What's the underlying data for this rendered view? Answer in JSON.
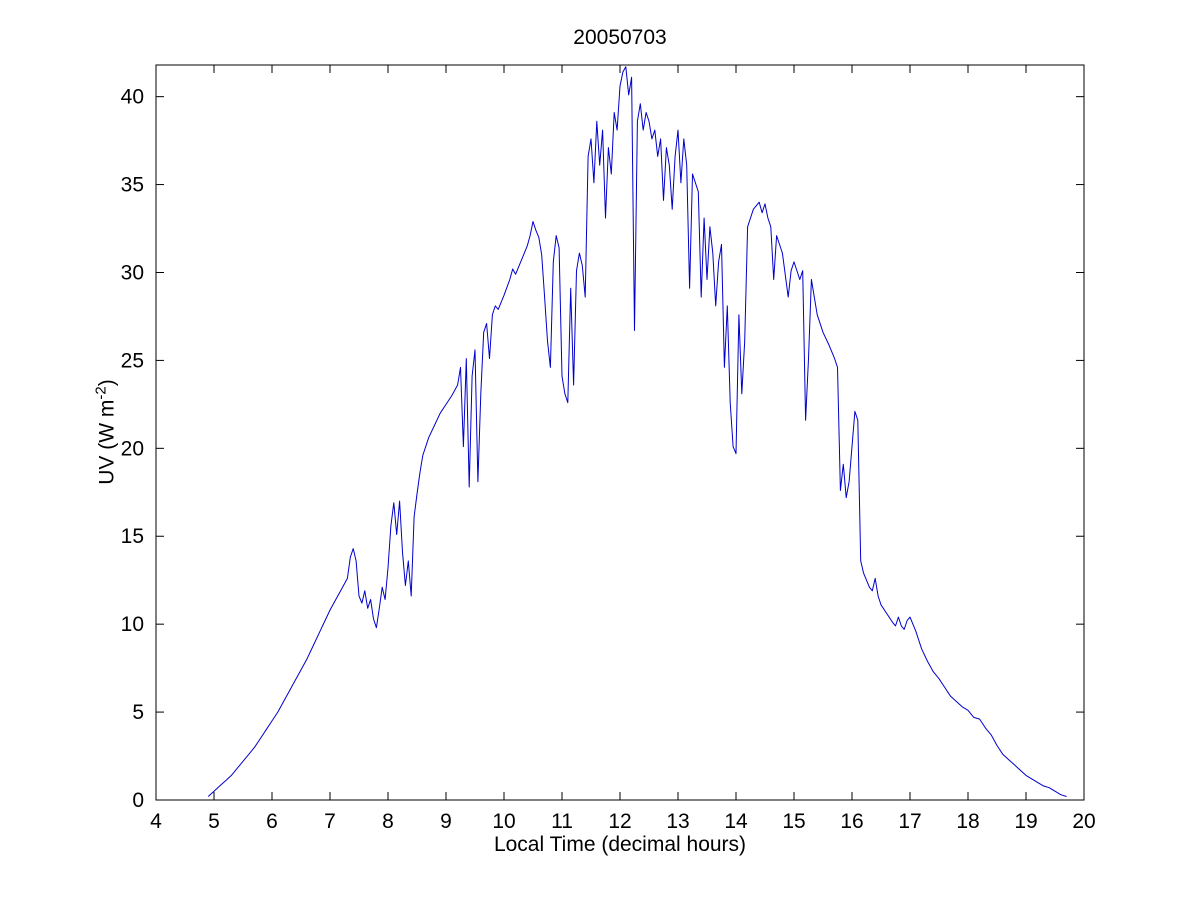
{
  "figure": {
    "title": "20050703",
    "xlabel": "Local Time (decimal hours)",
    "ylabel_main": "UV (W m",
    "ylabel_sup": "-2",
    "ylabel_close": ")",
    "background_color": "#ffffff",
    "axis_color": "#000000"
  },
  "chart_data": {
    "type": "line",
    "title": "20050703",
    "xlabel": "Local Time (decimal hours)",
    "ylabel": "UV (W m^-2)",
    "line_color": "#0000cc",
    "grid": false,
    "legend": "none",
    "xlim": [
      4,
      20
    ],
    "ylim": [
      0,
      41.8
    ],
    "xticks": [
      4,
      5,
      6,
      7,
      8,
      9,
      10,
      11,
      12,
      13,
      14,
      15,
      16,
      17,
      18,
      19,
      20
    ],
    "yticks": [
      0,
      5,
      10,
      15,
      20,
      25,
      30,
      35,
      40
    ],
    "points": [
      [
        4.9,
        0.2
      ],
      [
        5.0,
        0.5
      ],
      [
        5.1,
        0.8
      ],
      [
        5.2,
        1.1
      ],
      [
        5.3,
        1.4
      ],
      [
        5.4,
        1.8
      ],
      [
        5.5,
        2.2
      ],
      [
        5.6,
        2.6
      ],
      [
        5.7,
        3.0
      ],
      [
        5.8,
        3.5
      ],
      [
        5.9,
        4.0
      ],
      [
        6.0,
        4.5
      ],
      [
        6.1,
        5.0
      ],
      [
        6.2,
        5.6
      ],
      [
        6.3,
        6.2
      ],
      [
        6.4,
        6.8
      ],
      [
        6.5,
        7.4
      ],
      [
        6.6,
        8.0
      ],
      [
        6.7,
        8.7
      ],
      [
        6.8,
        9.4
      ],
      [
        6.9,
        10.1
      ],
      [
        7.0,
        10.8
      ],
      [
        7.1,
        11.4
      ],
      [
        7.2,
        12.0
      ],
      [
        7.3,
        12.6
      ],
      [
        7.35,
        13.8
      ],
      [
        7.4,
        14.3
      ],
      [
        7.45,
        13.6
      ],
      [
        7.5,
        11.6
      ],
      [
        7.55,
        11.2
      ],
      [
        7.6,
        11.9
      ],
      [
        7.65,
        10.9
      ],
      [
        7.7,
        11.4
      ],
      [
        7.75,
        10.3
      ],
      [
        7.8,
        9.8
      ],
      [
        7.85,
        10.9
      ],
      [
        7.9,
        12.1
      ],
      [
        7.95,
        11.4
      ],
      [
        8.0,
        13.2
      ],
      [
        8.05,
        15.6
      ],
      [
        8.1,
        16.9
      ],
      [
        8.15,
        15.1
      ],
      [
        8.2,
        17.0
      ],
      [
        8.25,
        14.1
      ],
      [
        8.3,
        12.2
      ],
      [
        8.35,
        13.6
      ],
      [
        8.4,
        11.6
      ],
      [
        8.45,
        16.1
      ],
      [
        8.5,
        17.4
      ],
      [
        8.55,
        18.6
      ],
      [
        8.6,
        19.6
      ],
      [
        8.7,
        20.6
      ],
      [
        8.8,
        21.3
      ],
      [
        8.9,
        22.0
      ],
      [
        9.0,
        22.5
      ],
      [
        9.1,
        23.0
      ],
      [
        9.2,
        23.6
      ],
      [
        9.25,
        24.6
      ],
      [
        9.3,
        20.1
      ],
      [
        9.35,
        25.1
      ],
      [
        9.4,
        17.8
      ],
      [
        9.45,
        24.1
      ],
      [
        9.5,
        25.6
      ],
      [
        9.55,
        18.1
      ],
      [
        9.6,
        23.1
      ],
      [
        9.65,
        26.6
      ],
      [
        9.7,
        27.1
      ],
      [
        9.75,
        25.1
      ],
      [
        9.8,
        27.6
      ],
      [
        9.85,
        28.1
      ],
      [
        9.9,
        27.9
      ],
      [
        10.0,
        28.7
      ],
      [
        10.1,
        29.6
      ],
      [
        10.15,
        30.2
      ],
      [
        10.2,
        29.9
      ],
      [
        10.3,
        30.7
      ],
      [
        10.4,
        31.5
      ],
      [
        10.45,
        32.1
      ],
      [
        10.5,
        32.9
      ],
      [
        10.55,
        32.4
      ],
      [
        10.6,
        32.0
      ],
      [
        10.65,
        31.0
      ],
      [
        10.7,
        28.6
      ],
      [
        10.75,
        26.1
      ],
      [
        10.8,
        24.6
      ],
      [
        10.85,
        30.6
      ],
      [
        10.9,
        32.1
      ],
      [
        10.95,
        31.4
      ],
      [
        11.0,
        24.1
      ],
      [
        11.05,
        23.1
      ],
      [
        11.1,
        22.6
      ],
      [
        11.15,
        29.1
      ],
      [
        11.2,
        23.6
      ],
      [
        11.25,
        30.1
      ],
      [
        11.3,
        31.1
      ],
      [
        11.35,
        30.4
      ],
      [
        11.4,
        28.6
      ],
      [
        11.45,
        36.6
      ],
      [
        11.5,
        37.6
      ],
      [
        11.55,
        35.1
      ],
      [
        11.6,
        38.6
      ],
      [
        11.65,
        36.1
      ],
      [
        11.7,
        38.1
      ],
      [
        11.75,
        33.1
      ],
      [
        11.8,
        37.1
      ],
      [
        11.85,
        35.6
      ],
      [
        11.9,
        39.1
      ],
      [
        11.95,
        38.1
      ],
      [
        12.0,
        40.6
      ],
      [
        12.05,
        41.4
      ],
      [
        12.1,
        41.7
      ],
      [
        12.15,
        40.1
      ],
      [
        12.2,
        41.1
      ],
      [
        12.25,
        26.7
      ],
      [
        12.3,
        38.6
      ],
      [
        12.35,
        39.6
      ],
      [
        12.4,
        38.1
      ],
      [
        12.45,
        39.1
      ],
      [
        12.5,
        38.6
      ],
      [
        12.55,
        37.6
      ],
      [
        12.6,
        38.1
      ],
      [
        12.65,
        36.6
      ],
      [
        12.7,
        37.6
      ],
      [
        12.75,
        34.1
      ],
      [
        12.8,
        37.1
      ],
      [
        12.85,
        36.1
      ],
      [
        12.9,
        33.6
      ],
      [
        12.95,
        36.6
      ],
      [
        13.0,
        38.1
      ],
      [
        13.05,
        35.1
      ],
      [
        13.1,
        37.6
      ],
      [
        13.15,
        36.1
      ],
      [
        13.2,
        29.1
      ],
      [
        13.25,
        35.6
      ],
      [
        13.3,
        35.1
      ],
      [
        13.35,
        34.6
      ],
      [
        13.4,
        28.6
      ],
      [
        13.45,
        33.1
      ],
      [
        13.5,
        29.6
      ],
      [
        13.55,
        32.6
      ],
      [
        13.6,
        31.1
      ],
      [
        13.65,
        28.1
      ],
      [
        13.7,
        30.6
      ],
      [
        13.75,
        31.6
      ],
      [
        13.8,
        24.6
      ],
      [
        13.85,
        28.1
      ],
      [
        13.9,
        22.6
      ],
      [
        13.95,
        20.1
      ],
      [
        14.0,
        19.7
      ],
      [
        14.05,
        27.6
      ],
      [
        14.1,
        23.1
      ],
      [
        14.15,
        26.1
      ],
      [
        14.2,
        32.6
      ],
      [
        14.25,
        33.1
      ],
      [
        14.3,
        33.6
      ],
      [
        14.4,
        34.0
      ],
      [
        14.45,
        33.4
      ],
      [
        14.5,
        33.9
      ],
      [
        14.55,
        33.1
      ],
      [
        14.6,
        32.6
      ],
      [
        14.65,
        29.6
      ],
      [
        14.7,
        32.1
      ],
      [
        14.8,
        31.1
      ],
      [
        14.9,
        28.6
      ],
      [
        14.95,
        30.1
      ],
      [
        15.0,
        30.6
      ],
      [
        15.1,
        29.6
      ],
      [
        15.15,
        30.1
      ],
      [
        15.2,
        21.6
      ],
      [
        15.25,
        25.1
      ],
      [
        15.3,
        29.6
      ],
      [
        15.4,
        27.6
      ],
      [
        15.5,
        26.6
      ],
      [
        15.6,
        25.9
      ],
      [
        15.7,
        25.1
      ],
      [
        15.75,
        24.6
      ],
      [
        15.8,
        17.6
      ],
      [
        15.85,
        19.1
      ],
      [
        15.9,
        17.2
      ],
      [
        15.95,
        18.1
      ],
      [
        16.0,
        20.1
      ],
      [
        16.05,
        22.1
      ],
      [
        16.1,
        21.6
      ],
      [
        16.15,
        13.6
      ],
      [
        16.2,
        12.9
      ],
      [
        16.3,
        12.1
      ],
      [
        16.35,
        11.9
      ],
      [
        16.4,
        12.6
      ],
      [
        16.45,
        11.6
      ],
      [
        16.5,
        11.1
      ],
      [
        16.6,
        10.6
      ],
      [
        16.7,
        10.1
      ],
      [
        16.75,
        9.9
      ],
      [
        16.8,
        10.4
      ],
      [
        16.85,
        9.9
      ],
      [
        16.9,
        9.7
      ],
      [
        16.95,
        10.2
      ],
      [
        17.0,
        10.4
      ],
      [
        17.1,
        9.6
      ],
      [
        17.15,
        9.1
      ],
      [
        17.2,
        8.6
      ],
      [
        17.3,
        7.9
      ],
      [
        17.4,
        7.3
      ],
      [
        17.5,
        6.9
      ],
      [
        17.6,
        6.4
      ],
      [
        17.7,
        5.9
      ],
      [
        17.8,
        5.6
      ],
      [
        17.9,
        5.3
      ],
      [
        18.0,
        5.1
      ],
      [
        18.1,
        4.7
      ],
      [
        18.2,
        4.6
      ],
      [
        18.3,
        4.1
      ],
      [
        18.4,
        3.7
      ],
      [
        18.5,
        3.1
      ],
      [
        18.6,
        2.6
      ],
      [
        18.7,
        2.3
      ],
      [
        18.8,
        2.0
      ],
      [
        18.9,
        1.7
      ],
      [
        19.0,
        1.4
      ],
      [
        19.1,
        1.2
      ],
      [
        19.2,
        1.0
      ],
      [
        19.3,
        0.8
      ],
      [
        19.4,
        0.7
      ],
      [
        19.5,
        0.5
      ],
      [
        19.6,
        0.3
      ],
      [
        19.7,
        0.2
      ]
    ]
  }
}
